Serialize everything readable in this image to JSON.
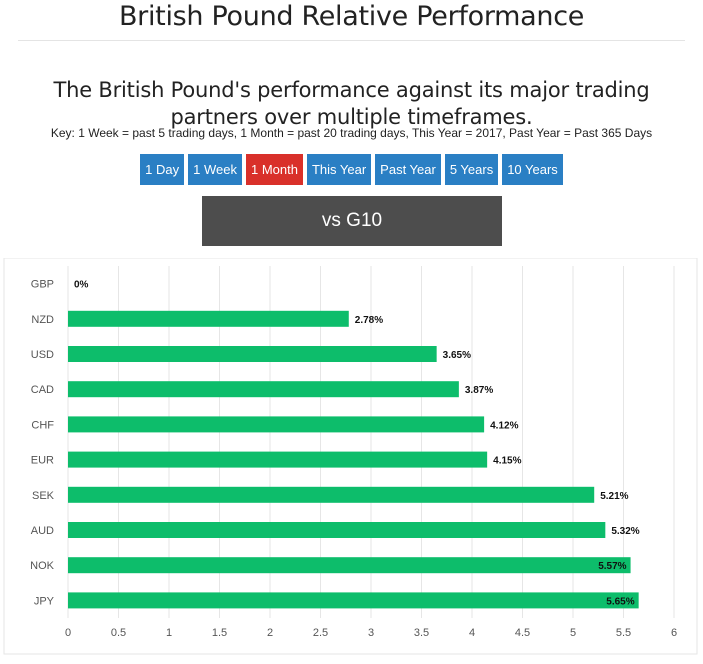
{
  "header": {
    "title": "British Pound Relative Performance",
    "subtitle": "The British Pound's performance against its major trading partners over multiple timeframes.",
    "key": "Key: 1 Week = past 5 trading days, 1 Month = past 20 trading days, This Year = 2017, Past Year = Past 365 Days"
  },
  "timeframes": {
    "buttons": [
      {
        "label": "1 Day",
        "active": false
      },
      {
        "label": "1 Week",
        "active": false
      },
      {
        "label": "1 Month",
        "active": true
      },
      {
        "label": "This Year",
        "active": false
      },
      {
        "label": "Past Year",
        "active": false
      },
      {
        "label": "5 Years",
        "active": false
      },
      {
        "label": "10 Years",
        "active": false
      }
    ]
  },
  "banner": {
    "label": "vs G10"
  },
  "colors": {
    "bar": "#0dbd6b",
    "button": "#2a7fc4",
    "button_active": "#d9302a",
    "banner": "#4d4d4d"
  },
  "chart_data": {
    "type": "bar",
    "orientation": "horizontal",
    "categories": [
      "GBP",
      "NZD",
      "USD",
      "CAD",
      "CHF",
      "EUR",
      "SEK",
      "AUD",
      "NOK",
      "JPY"
    ],
    "values": [
      0,
      2.78,
      3.65,
      3.87,
      4.12,
      4.15,
      5.21,
      5.32,
      5.57,
      5.65
    ],
    "data_labels": [
      "0%",
      "2.78%",
      "3.65%",
      "3.87%",
      "4.12%",
      "4.15%",
      "5.21%",
      "5.32%",
      "5.57%",
      "5.65%"
    ],
    "xlim": [
      0,
      6
    ],
    "xticks": [
      "0",
      "0.5",
      "1",
      "1.5",
      "2",
      "2.5",
      "3",
      "3.5",
      "4",
      "4.5",
      "5",
      "5.5",
      "6"
    ],
    "grid": true
  }
}
